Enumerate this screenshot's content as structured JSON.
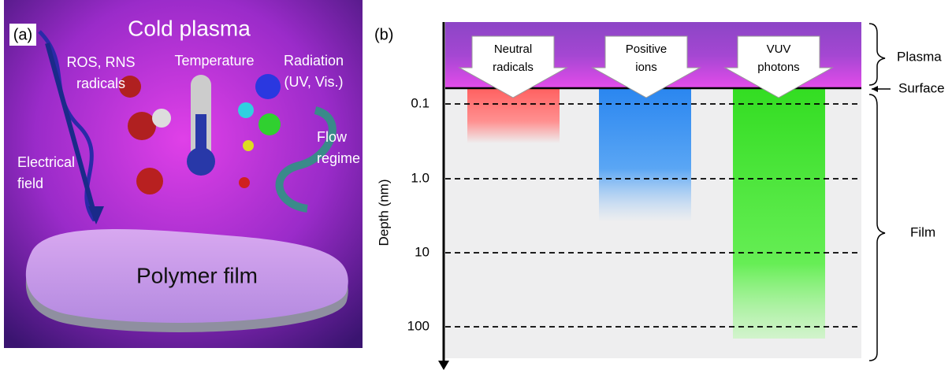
{
  "panel_a": {
    "label": "(a)",
    "title": "Cold plasma",
    "annotations": [
      [
        "ROS, RNS",
        "radicals"
      ],
      [
        "Temperature"
      ],
      [
        "Radiation",
        "(UV, Vis.)"
      ],
      [
        "Flow",
        "regime"
      ],
      [
        "Electrical",
        "field"
      ]
    ],
    "film": "Polymer film"
  },
  "panel_b": {
    "label": "(b)",
    "axis_label": "Depth (nm)",
    "ticks": [
      "0.1",
      "1.0",
      "10",
      "100"
    ],
    "species": [
      [
        "Neutral",
        "radicals"
      ],
      [
        "Positive",
        "ions"
      ],
      [
        "VUV",
        "photons"
      ]
    ],
    "regions": [
      "Plasma",
      "Surface",
      "Film"
    ]
  }
}
